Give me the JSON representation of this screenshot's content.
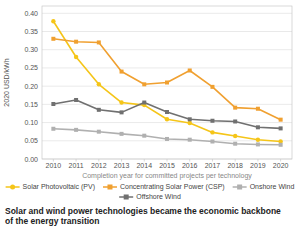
{
  "chart_data": {
    "type": "line",
    "title": [
      "Solar and wind power technologies became the economic backbone",
      "of the energy transition"
    ],
    "x_label": "Completion year for committed projects per technology",
    "y_label": "2020 USD/kWh",
    "x": [
      2010,
      2011,
      2012,
      2013,
      2014,
      2015,
      2016,
      2017,
      2018,
      2019,
      2020
    ],
    "xlim": [
      2009.5,
      2020.5
    ],
    "xticks": [
      2010,
      2011,
      2012,
      2013,
      2014,
      2015,
      2016,
      2017,
      2018,
      2019,
      2020
    ],
    "ylim": [
      0,
      0.42
    ],
    "yticks": [
      {
        "value": 0,
        "label": "0.00"
      },
      {
        "value": 0.05,
        "label": "0.05"
      },
      {
        "value": 0.1,
        "label": "0.10"
      },
      {
        "value": 0.15,
        "label": "0.15"
      },
      {
        "value": 0.2,
        "label": "0.20"
      },
      {
        "value": 0.25,
        "label": "0.25"
      },
      {
        "value": 0.3,
        "label": "0.30"
      },
      {
        "value": 0.35,
        "label": "0.35"
      },
      {
        "value": 0.4,
        "label": "0.40"
      }
    ],
    "grid": "y",
    "legend": "bottom",
    "series": [
      {
        "name": "Solar Photovoltaic (PV)",
        "color": "#F5C518",
        "marker": "circle",
        "values": [
          0.378,
          0.28,
          0.205,
          0.155,
          0.148,
          0.109,
          0.099,
          0.073,
          0.063,
          0.053,
          0.048
        ]
      },
      {
        "name": "Concentrating Solar Power (CSP)",
        "color": "#F0A030",
        "marker": "square",
        "values": [
          0.33,
          0.322,
          0.32,
          0.24,
          0.205,
          0.21,
          0.243,
          0.198,
          0.141,
          0.138,
          0.108
        ]
      },
      {
        "name": "Onshore Wind",
        "color": "#B0B0B0",
        "marker": "square",
        "values": [
          0.083,
          0.08,
          0.075,
          0.069,
          0.064,
          0.055,
          0.053,
          0.048,
          0.042,
          0.04,
          0.039
        ]
      },
      {
        "name": "Offshore Wind",
        "color": "#707070",
        "marker": "square",
        "values": [
          0.151,
          0.162,
          0.135,
          0.128,
          0.155,
          0.129,
          0.109,
          0.105,
          0.103,
          0.087,
          0.084
        ]
      }
    ]
  }
}
